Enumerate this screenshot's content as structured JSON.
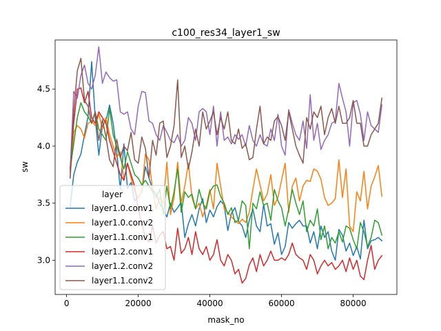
{
  "chart_data": {
    "type": "line",
    "title": "c100_res34_layer1_sw",
    "xlabel": "mask_no",
    "ylabel": "sw",
    "xlim": [
      -3200,
      92200
    ],
    "ylim": [
      2.7,
      4.93
    ],
    "xticks": [
      0,
      20000,
      40000,
      60000,
      80000
    ],
    "xtick_labels": [
      "0",
      "20000",
      "40000",
      "60000",
      "80000"
    ],
    "yticks": [
      3.0,
      3.5,
      4.0,
      4.5
    ],
    "ytick_labels": [
      "3.0",
      "3.5",
      "4.0",
      "4.5"
    ],
    "grid": false,
    "legend": {
      "title": "layer",
      "placement": "lower-left"
    },
    "x": [
      1000,
      2000,
      3000,
      4000,
      5000,
      6000,
      7000,
      8000,
      9000,
      10000,
      11000,
      12000,
      13000,
      14000,
      15000,
      16000,
      17000,
      18000,
      19000,
      20000,
      21000,
      22000,
      23000,
      24000,
      25000,
      26000,
      27000,
      28000,
      29000,
      30000,
      31000,
      32000,
      33000,
      34000,
      35000,
      36000,
      37000,
      38000,
      39000,
      40000,
      41000,
      42000,
      43000,
      44000,
      45000,
      46000,
      47000,
      48000,
      49000,
      50000,
      51000,
      52000,
      53000,
      54000,
      55000,
      56000,
      57000,
      58000,
      59000,
      60000,
      61000,
      62000,
      63000,
      64000,
      65000,
      66000,
      67000,
      68000,
      69000,
      70000,
      71000,
      72000,
      73000,
      74000,
      75000,
      76000,
      77000,
      78000,
      79000,
      80000,
      81000,
      82000,
      83000,
      84000,
      85000,
      86000,
      87000,
      88000
    ],
    "series": [
      {
        "name": "layer1.0.conv1",
        "color": "#1f77b4",
        "values": [
          3.47,
          3.75,
          3.86,
          3.93,
          4.1,
          4.26,
          4.74,
          4.25,
          3.92,
          4.18,
          4.22,
          4.36,
          4.2,
          3.95,
          3.62,
          4.02,
          3.63,
          3.68,
          3.52,
          3.55,
          3.6,
          3.82,
          3.72,
          3.62,
          3.58,
          3.5,
          3.44,
          3.38,
          3.5,
          3.42,
          3.46,
          3.51,
          3.2,
          3.32,
          3.4,
          3.3,
          3.45,
          3.54,
          3.33,
          3.44,
          3.38,
          3.47,
          3.52,
          3.48,
          3.26,
          3.41,
          3.46,
          3.34,
          3.3,
          3.2,
          3.35,
          3.45,
          3.3,
          3.25,
          3.49,
          3.3,
          3.32,
          3.14,
          3.24,
          3.05,
          3.12,
          3.33,
          3.28,
          3.32,
          3.35,
          3.3,
          3.3,
          3.15,
          3.25,
          3.1,
          3.3,
          3.2,
          3.25,
          3.08,
          3.0,
          3.27,
          3.22,
          3.08,
          3.15,
          3.04,
          3.12,
          3.01,
          3.35,
          3.1,
          3.17,
          3.18,
          3.2,
          3.17
        ]
      },
      {
        "name": "layer1.0.conv2",
        "color": "#ff7f0e",
        "values": [
          3.73,
          4.12,
          4.18,
          4.15,
          4.07,
          4.2,
          4.22,
          4.18,
          4.28,
          4.15,
          4.25,
          4.1,
          4.0,
          3.9,
          3.95,
          3.7,
          3.85,
          3.72,
          3.6,
          3.55,
          3.6,
          3.93,
          3.88,
          3.62,
          3.45,
          3.55,
          3.5,
          3.86,
          3.4,
          3.55,
          3.86,
          3.5,
          3.65,
          3.85,
          3.55,
          3.45,
          3.5,
          3.38,
          3.48,
          3.62,
          3.45,
          3.85,
          3.65,
          3.45,
          3.42,
          3.38,
          3.35,
          3.32,
          3.36,
          3.33,
          3.42,
          3.62,
          3.8,
          3.66,
          3.52,
          3.58,
          3.75,
          3.48,
          3.55,
          3.7,
          3.85,
          3.42,
          3.65,
          3.72,
          3.52,
          3.65,
          3.7,
          3.69,
          3.8,
          3.78,
          3.71,
          3.55,
          3.48,
          3.5,
          3.54,
          3.88,
          3.55,
          3.8,
          3.3,
          3.25,
          3.6,
          3.52,
          3.78,
          3.45,
          3.65,
          3.73,
          3.83,
          3.56
        ]
      },
      {
        "name": "layer1.1.conv1",
        "color": "#2ca02c",
        "values": [
          3.8,
          4.02,
          4.25,
          4.38,
          4.3,
          4.26,
          4.2,
          4.3,
          4.15,
          4.1,
          4.05,
          4.33,
          4.1,
          4.0,
          3.9,
          3.8,
          3.95,
          3.85,
          3.75,
          3.72,
          3.66,
          3.7,
          3.65,
          3.6,
          3.55,
          3.62,
          3.4,
          3.65,
          3.45,
          3.6,
          3.8,
          3.42,
          3.6,
          3.55,
          3.58,
          3.45,
          3.62,
          3.5,
          3.45,
          3.6,
          3.65,
          3.66,
          3.56,
          3.5,
          3.4,
          3.46,
          3.33,
          3.35,
          3.52,
          3.48,
          3.1,
          3.5,
          3.45,
          3.6,
          3.48,
          3.5,
          3.35,
          3.62,
          3.52,
          3.46,
          3.3,
          3.45,
          3.62,
          3.5,
          3.4,
          3.52,
          3.25,
          3.35,
          3.3,
          3.45,
          3.18,
          3.3,
          3.1,
          3.2,
          3.15,
          3.25,
          3.16,
          3.3,
          3.28,
          3.18,
          3.1,
          3.33,
          3.25,
          3.12,
          3.2,
          3.35,
          3.33,
          3.22
        ]
      },
      {
        "name": "layer1.2.conv1",
        "color": "#d62728",
        "values": [
          3.81,
          4.2,
          4.5,
          4.51,
          4.38,
          4.48,
          4.25,
          4.2,
          4.3,
          4.25,
          4.2,
          4.05,
          3.95,
          3.85,
          3.75,
          3.7,
          3.85,
          3.75,
          3.65,
          3.45,
          3.32,
          3.2,
          3.16,
          3.3,
          3.15,
          3.22,
          3.25,
          3.1,
          3.12,
          3.0,
          3.28,
          3.06,
          3.1,
          3.2,
          3.05,
          3.25,
          3.1,
          3.05,
          3.12,
          3.0,
          3.05,
          3.18,
          3.0,
          2.95,
          3.05,
          3.0,
          2.88,
          2.92,
          2.8,
          2.84,
          2.96,
          3.02,
          2.9,
          3.05,
          2.95,
          3.0,
          3.08,
          3.0,
          3.0,
          3.02,
          3.0,
          3.05,
          3.15,
          3.05,
          3.02,
          3.0,
          2.92,
          3.05,
          3.0,
          2.88,
          2.95,
          3.0,
          2.95,
          2.98,
          2.92,
          2.95,
          3.0,
          2.9,
          3.02,
          2.92,
          3.0,
          2.86,
          2.83,
          3.0,
          3.13,
          2.92,
          3.0,
          3.04
        ]
      },
      {
        "name": "layer1.2.conv2",
        "color": "#9467bd",
        "values": [
          3.77,
          4.48,
          4.42,
          4.62,
          4.71,
          4.55,
          4.5,
          4.62,
          4.87,
          4.55,
          4.65,
          4.6,
          4.57,
          4.58,
          4.3,
          4.28,
          4.3,
          4.15,
          4.1,
          4.35,
          4.48,
          4.47,
          4.22,
          4.2,
          4.1,
          4.05,
          4.18,
          4.12,
          4.05,
          4.03,
          4.1,
          4.0,
          4.05,
          4.25,
          4.2,
          4.05,
          4.3,
          4.33,
          4.3,
          4.1,
          4.35,
          4.0,
          4.3,
          4.05,
          4.08,
          4.02,
          4.1,
          4.06,
          4.1,
          4.0,
          4.18,
          4.05,
          4.0,
          4.1,
          4.02,
          4.0,
          4.15,
          4.05,
          4.28,
          4.0,
          3.92,
          4.32,
          4.2,
          4.1,
          4.05,
          4.22,
          3.98,
          4.45,
          4.05,
          4.2,
          3.97,
          4.05,
          4.1,
          4.2,
          4.22,
          4.55,
          4.42,
          4.3,
          4.0,
          4.38,
          4.4,
          4.28,
          4.05,
          4.3,
          4.18,
          4.15,
          4.12,
          4.36
        ]
      },
      {
        "name": "layer1.1.conv2",
        "color": "#8c564b",
        "values": [
          3.72,
          4.3,
          4.66,
          4.77,
          4.4,
          4.35,
          4.2,
          4.3,
          4.05,
          4.23,
          4.08,
          3.88,
          3.82,
          4.06,
          3.9,
          4.0,
          3.96,
          4.12,
          3.88,
          3.85,
          4.08,
          3.98,
          3.72,
          4.05,
          3.92,
          4.2,
          4.22,
          3.9,
          4.0,
          4.18,
          4.58,
          3.9,
          4.0,
          3.8,
          3.95,
          4.15,
          4.0,
          4.3,
          4.15,
          4.22,
          4.3,
          4.1,
          4.25,
          4.15,
          4.3,
          4.05,
          4.02,
          4.15,
          3.98,
          4.02,
          3.88,
          3.9,
          4.15,
          4.35,
          4.02,
          4.08,
          4.05,
          4.22,
          4.26,
          4.18,
          4.05,
          4.3,
          4.15,
          4.0,
          3.92,
          3.85,
          4.25,
          4.15,
          4.3,
          4.25,
          4.35,
          4.1,
          4.25,
          4.33,
          4.2,
          4.35,
          4.2,
          4.2,
          4.25,
          4.4,
          4.2,
          4.2,
          4.0,
          4.0,
          4.1,
          4.15,
          4.2,
          4.42
        ]
      }
    ]
  }
}
